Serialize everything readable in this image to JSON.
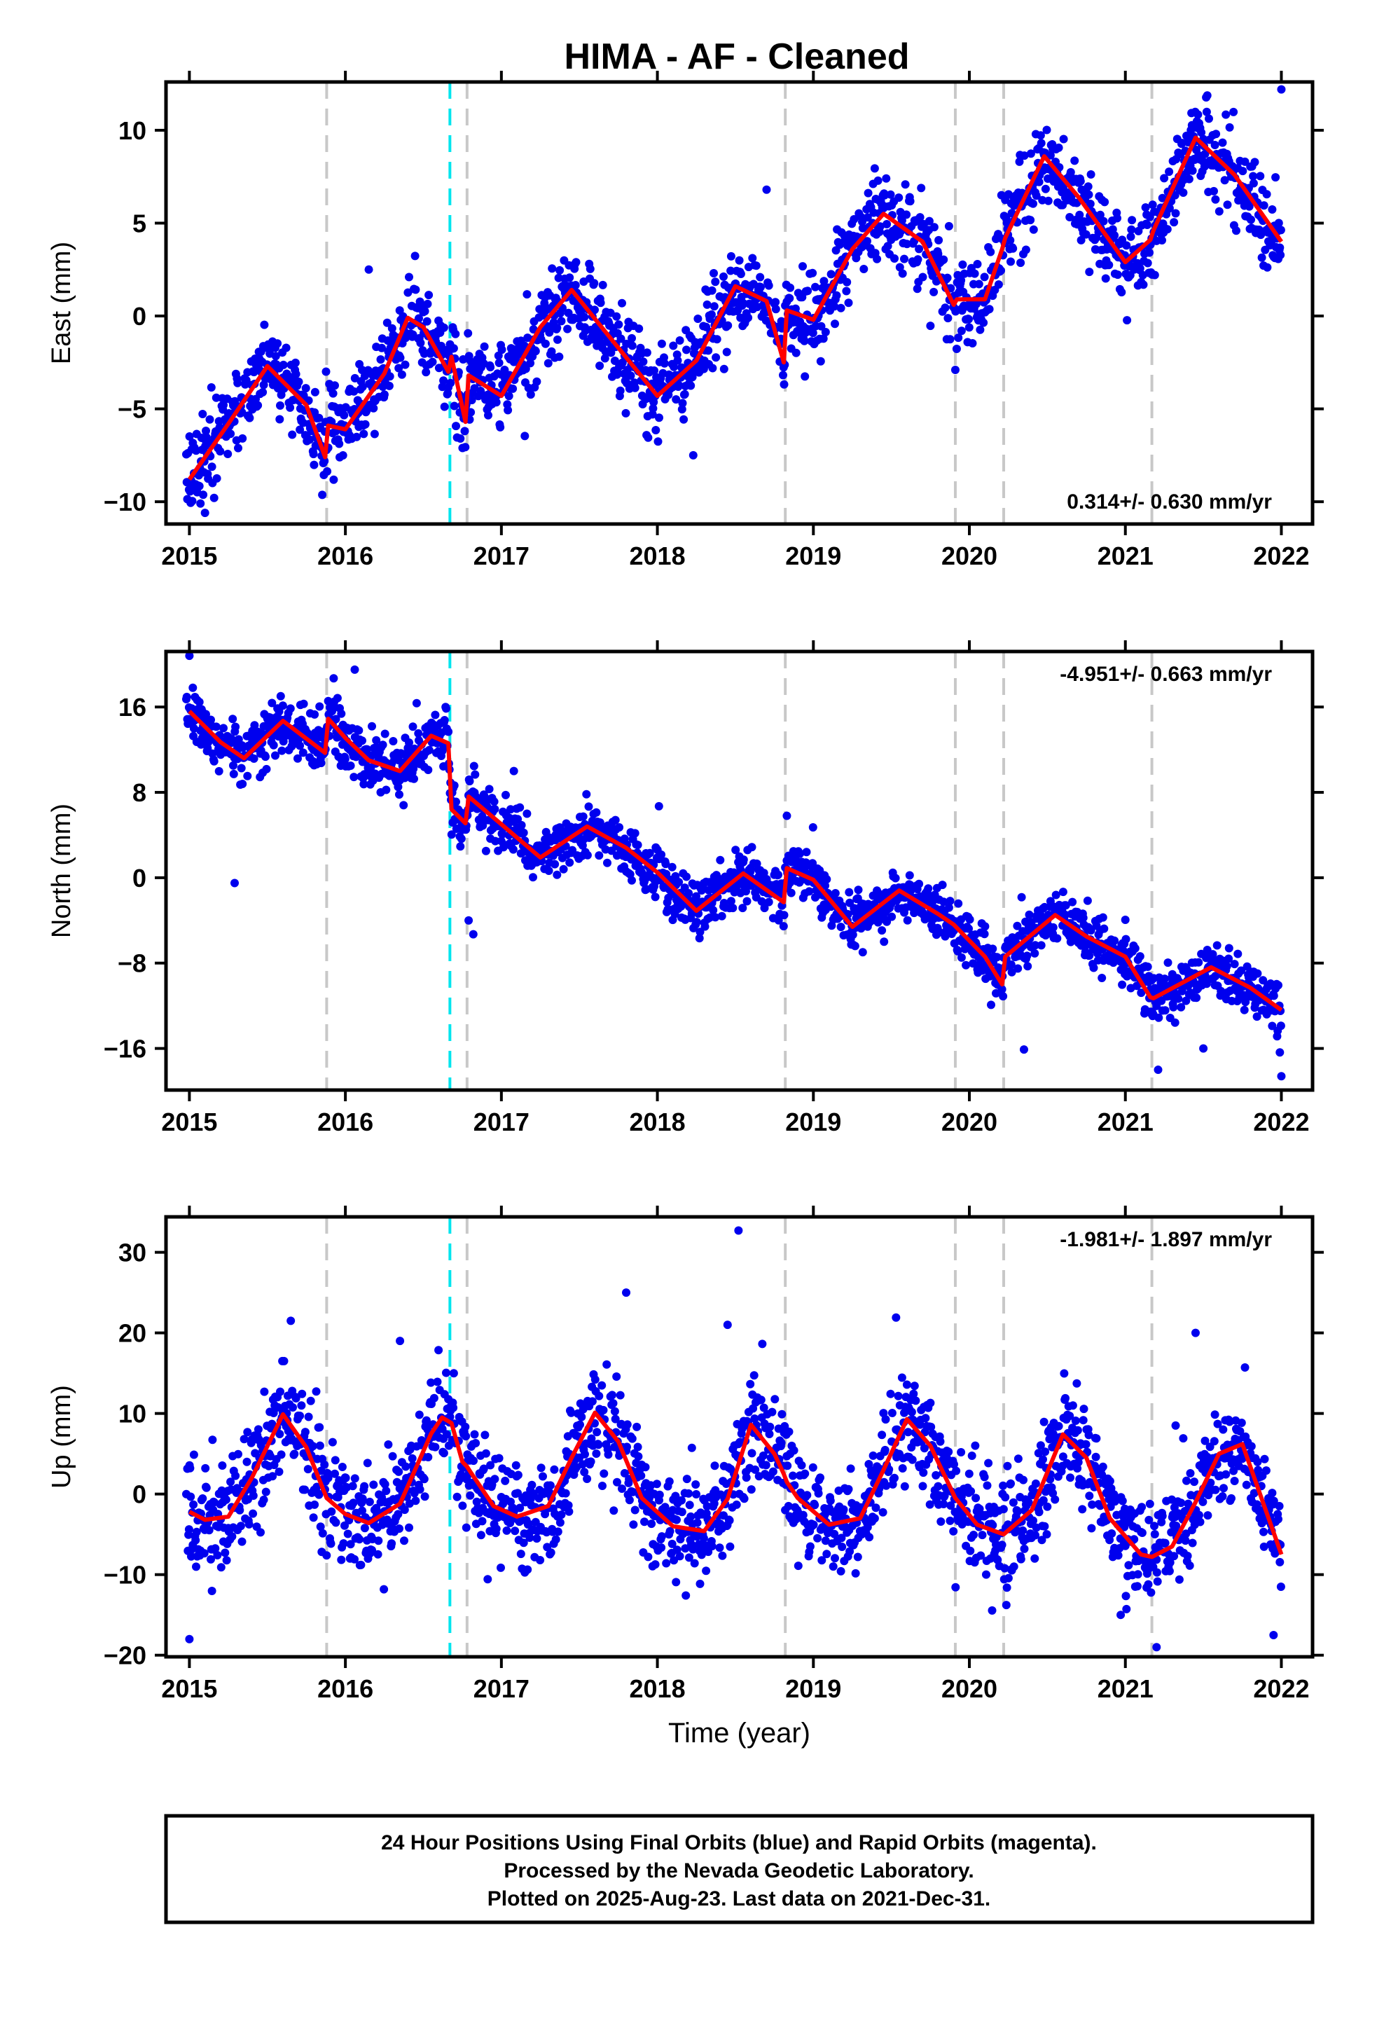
{
  "title": "HIMA  - AF - Cleaned",
  "footer": {
    "line1": "24 Hour Positions Using Final Orbits (blue) and Rapid Orbits (magenta).",
    "line2": "Processed by the Nevada Geodetic Laboratory.",
    "line3": "Plotted on 2025-Aug-23. Last data on 2021-Dec-31."
  },
  "colors": {
    "points": "#0000ee",
    "fit": "#ff0000",
    "break_gray": "#c8c8c8",
    "break_cyan": "#00e5ee",
    "frame": "#000000"
  },
  "chart_data": [
    {
      "type": "scatter",
      "component": "east",
      "ylabel": "East (mm)",
      "rate_text": "0.314+/- 0.630 mm/yr",
      "rate_position": "bottom-right",
      "xlim": [
        2014.85,
        2022.2
      ],
      "ylim": [
        -11.2,
        12.6
      ],
      "xticks": [
        2015,
        2016,
        2017,
        2018,
        2019,
        2020,
        2021,
        2022
      ],
      "xtick_labels": [
        "2015",
        "2016",
        "2017",
        "2018",
        "2019",
        "2020",
        "2021",
        "2022"
      ],
      "yticks": [
        -10,
        -5,
        0,
        5,
        10
      ],
      "ytick_labels": [
        "−10",
        "−5",
        "0",
        "5",
        "10"
      ],
      "grid": false,
      "breaks": [
        {
          "x": 2015.88,
          "kind": "equipment"
        },
        {
          "x": 2016.67,
          "kind": "earthquake"
        },
        {
          "x": 2016.78,
          "kind": "equipment"
        },
        {
          "x": 2018.82,
          "kind": "equipment"
        },
        {
          "x": 2019.91,
          "kind": "equipment"
        },
        {
          "x": 2020.22,
          "kind": "equipment"
        },
        {
          "x": 2021.17,
          "kind": "equipment"
        }
      ],
      "model_fit": {
        "name": "fit",
        "x": [
          2015.0,
          2015.25,
          2015.5,
          2015.75,
          2015.87,
          2015.89,
          2016.0,
          2016.25,
          2016.4,
          2016.5,
          2016.66,
          2016.68,
          2016.77,
          2016.79,
          2017.0,
          2017.25,
          2017.45,
          2017.7,
          2018.0,
          2018.25,
          2018.5,
          2018.7,
          2018.81,
          2018.83,
          2019.0,
          2019.25,
          2019.45,
          2019.7,
          2019.9,
          2019.92,
          2020.1,
          2020.21,
          2020.23,
          2020.48,
          2020.7,
          2021.0,
          2021.16,
          2021.18,
          2021.45,
          2021.7,
          2022.0
        ],
        "y": [
          -8.8,
          -5.8,
          -2.7,
          -4.8,
          -7.6,
          -5.9,
          -6.1,
          -3.1,
          -0.1,
          -0.6,
          -3.0,
          -2.2,
          -5.7,
          -3.2,
          -4.3,
          -0.6,
          1.4,
          -1.2,
          -4.3,
          -2.4,
          1.6,
          0.8,
          -2.5,
          0.3,
          -0.2,
          3.6,
          5.5,
          4.0,
          0.6,
          0.9,
          0.9,
          3.6,
          4.2,
          8.6,
          6.4,
          2.9,
          4.1,
          4.6,
          9.6,
          7.6,
          4.0
        ]
      },
      "observations": {
        "name": "24-hour positions",
        "span": [
          2014.98,
          2022.0
        ],
        "sample_step_years": 0.0035,
        "scatter_mm": 1.15,
        "outliers": [
          {
            "x": 2018.7,
            "y": 6.8
          },
          {
            "x": 2019.91,
            "y": -2.9
          },
          {
            "x": 2022.0,
            "y": 12.2
          },
          {
            "x": 2016.15,
            "y": 2.5
          },
          {
            "x": 2018.23,
            "y": -7.5
          },
          {
            "x": 2015.1,
            "y": -10.6
          },
          {
            "x": 2019.95,
            "y": -0.8
          }
        ]
      }
    },
    {
      "type": "scatter",
      "component": "north",
      "ylabel": "North (mm)",
      "rate_text": "-4.951+/- 0.663 mm/yr",
      "rate_position": "top-right",
      "xlim": [
        2014.85,
        2022.2
      ],
      "ylim": [
        -19.9,
        21.2
      ],
      "xticks": [
        2015,
        2016,
        2017,
        2018,
        2019,
        2020,
        2021,
        2022
      ],
      "xtick_labels": [
        "2015",
        "2016",
        "2017",
        "2018",
        "2019",
        "2020",
        "2021",
        "2022"
      ],
      "yticks": [
        -16,
        -8,
        0,
        8,
        16
      ],
      "ytick_labels": [
        "−16",
        "−8",
        "0",
        "8",
        "16"
      ],
      "grid": false,
      "breaks": [
        {
          "x": 2015.88,
          "kind": "equipment"
        },
        {
          "x": 2016.67,
          "kind": "earthquake"
        },
        {
          "x": 2016.78,
          "kind": "equipment"
        },
        {
          "x": 2018.82,
          "kind": "equipment"
        },
        {
          "x": 2019.91,
          "kind": "equipment"
        },
        {
          "x": 2020.22,
          "kind": "equipment"
        },
        {
          "x": 2021.17,
          "kind": "equipment"
        }
      ],
      "model_fit": {
        "name": "fit",
        "x": [
          2015.0,
          2015.2,
          2015.35,
          2015.6,
          2015.87,
          2015.89,
          2016.0,
          2016.15,
          2016.35,
          2016.55,
          2016.66,
          2016.68,
          2016.77,
          2016.79,
          2017.0,
          2017.25,
          2017.55,
          2017.8,
          2018.0,
          2018.25,
          2018.55,
          2018.81,
          2018.83,
          2019.0,
          2019.25,
          2019.55,
          2019.8,
          2019.9,
          2019.92,
          2020.1,
          2020.21,
          2020.23,
          2020.55,
          2020.75,
          2021.0,
          2021.16,
          2021.18,
          2021.55,
          2021.8,
          2022.0
        ],
        "y": [
          15.6,
          12.7,
          11.2,
          14.7,
          11.7,
          14.9,
          13.1,
          11.0,
          10.0,
          13.3,
          12.6,
          6.4,
          5.1,
          7.6,
          5.0,
          1.9,
          4.8,
          2.8,
          0.5,
          -3.1,
          0.4,
          -2.3,
          0.9,
          -0.2,
          -4.6,
          -1.2,
          -3.4,
          -4.4,
          -4.7,
          -7.4,
          -10.0,
          -7.4,
          -3.5,
          -5.5,
          -7.4,
          -11.2,
          -11.3,
          -8.4,
          -10.3,
          -12.4
        ]
      },
      "observations": {
        "name": "24-hour positions",
        "span": [
          2014.98,
          2022.0
        ],
        "sample_step_years": 0.0035,
        "scatter_mm": 1.25,
        "outliers": [
          {
            "x": 2015.0,
            "y": 20.8
          },
          {
            "x": 2015.29,
            "y": -0.5
          },
          {
            "x": 2016.06,
            "y": 19.5
          },
          {
            "x": 2016.82,
            "y": -5.3
          },
          {
            "x": 2016.79,
            "y": -4.0
          },
          {
            "x": 2017.08,
            "y": 10.0
          },
          {
            "x": 2018.01,
            "y": 6.7
          },
          {
            "x": 2018.83,
            "y": 5.8
          },
          {
            "x": 2020.35,
            "y": -16.1
          },
          {
            "x": 2021.21,
            "y": -18.0
          },
          {
            "x": 2021.5,
            "y": -16.0
          },
          {
            "x": 2022.0,
            "y": -18.6
          }
        ]
      }
    },
    {
      "type": "scatter",
      "component": "up",
      "ylabel": "Up (mm)",
      "xlabel": "Time (year)",
      "rate_text": "-1.981+/- 1.897 mm/yr",
      "rate_position": "top-right",
      "xlim": [
        2014.85,
        2022.2
      ],
      "ylim": [
        -20.2,
        34.4
      ],
      "xticks": [
        2015,
        2016,
        2017,
        2018,
        2019,
        2020,
        2021,
        2022
      ],
      "xtick_labels": [
        "2015",
        "2016",
        "2017",
        "2018",
        "2019",
        "2020",
        "2021",
        "2022"
      ],
      "yticks": [
        -20,
        -10,
        0,
        10,
        20,
        30
      ],
      "ytick_labels": [
        "−20",
        "−10",
        "0",
        "10",
        "20",
        "30"
      ],
      "grid": false,
      "breaks": [
        {
          "x": 2015.88,
          "kind": "equipment"
        },
        {
          "x": 2016.67,
          "kind": "earthquake"
        },
        {
          "x": 2016.78,
          "kind": "equipment"
        },
        {
          "x": 2018.82,
          "kind": "equipment"
        },
        {
          "x": 2019.91,
          "kind": "equipment"
        },
        {
          "x": 2020.22,
          "kind": "equipment"
        },
        {
          "x": 2021.17,
          "kind": "equipment"
        }
      ],
      "model_fit": {
        "name": "fit",
        "x": [
          2015.0,
          2015.1,
          2015.25,
          2015.4,
          2015.6,
          2015.75,
          2015.88,
          2016.0,
          2016.15,
          2016.35,
          2016.55,
          2016.62,
          2016.68,
          2016.75,
          2016.78,
          2016.8,
          2016.95,
          2017.1,
          2017.3,
          2017.45,
          2017.6,
          2017.75,
          2017.9,
          2018.1,
          2018.3,
          2018.45,
          2018.6,
          2018.75,
          2018.81,
          2018.83,
          2018.9,
          2019.1,
          2019.3,
          2019.45,
          2019.6,
          2019.75,
          2019.91,
          2020.05,
          2020.22,
          2020.4,
          2020.6,
          2020.75,
          2020.9,
          2021.1,
          2021.17,
          2021.3,
          2021.45,
          2021.6,
          2021.75,
          2022.0
        ],
        "y": [
          -2.2,
          -3.2,
          -2.8,
          2.0,
          9.9,
          5.8,
          -0.5,
          -2.5,
          -3.6,
          -1.2,
          7.5,
          9.5,
          8.8,
          4.0,
          3.4,
          2.8,
          -1.5,
          -2.8,
          -1.5,
          4.5,
          10.1,
          6.5,
          -0.5,
          -4.0,
          -4.6,
          -0.6,
          8.6,
          5.0,
          2.5,
          1.5,
          -0.5,
          -3.8,
          -3.0,
          3.0,
          9.3,
          6.0,
          -0.5,
          -3.8,
          -5.0,
          -2.0,
          7.4,
          4.5,
          -3.0,
          -7.5,
          -7.8,
          -6.5,
          -1.0,
          5.0,
          6.2,
          -7.5
        ]
      },
      "observations": {
        "name": "24-hour positions",
        "span": [
          2014.98,
          2022.0
        ],
        "sample_step_years": 0.0035,
        "scatter_mm": 3.4,
        "outliers": [
          {
            "x": 2018.52,
            "y": 32.7
          },
          {
            "x": 2017.8,
            "y": 25.0
          },
          {
            "x": 2015.0,
            "y": -18.0
          },
          {
            "x": 2018.45,
            "y": 21.0
          },
          {
            "x": 2019.53,
            "y": 21.9
          },
          {
            "x": 2016.35,
            "y": 19.0
          },
          {
            "x": 2015.65,
            "y": 21.5
          },
          {
            "x": 2021.45,
            "y": 20.0
          },
          {
            "x": 2021.2,
            "y": -19.0
          },
          {
            "x": 2021.95,
            "y": -17.5
          },
          {
            "x": 2020.97,
            "y": -15.0
          }
        ]
      }
    }
  ]
}
